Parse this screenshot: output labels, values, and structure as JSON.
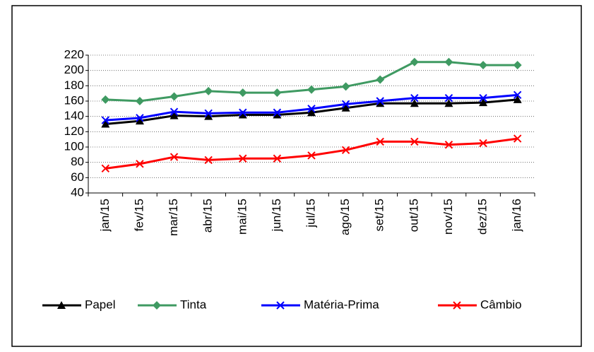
{
  "chart_data": {
    "type": "line",
    "categories": [
      "jan/15",
      "fev/15",
      "mar/15",
      "abr/15",
      "mai/15",
      "jun/15",
      "jul/15",
      "ago/15",
      "set/15",
      "out/15",
      "nov/15",
      "dez/15",
      "jan/16"
    ],
    "series": [
      {
        "name": "Papel",
        "color": "#000000",
        "marker": "triangle",
        "values": [
          130,
          134,
          141,
          140,
          142,
          142,
          145,
          151,
          157,
          157,
          157,
          158,
          162
        ]
      },
      {
        "name": "Tinta",
        "color": "#3f9a62",
        "marker": "diamond",
        "values": [
          162,
          160,
          166,
          173,
          171,
          171,
          175,
          179,
          188,
          211,
          211,
          207,
          207
        ]
      },
      {
        "name": "Matéria-Prima",
        "color": "#0000ff",
        "marker": "x",
        "values": [
          135,
          138,
          146,
          144,
          145,
          145,
          150,
          156,
          160,
          164,
          164,
          164,
          168
        ]
      },
      {
        "name": "Câmbio",
        "color": "#ff0000",
        "marker": "x",
        "values": [
          72,
          78,
          87,
          83,
          85,
          85,
          89,
          96,
          107,
          107,
          103,
          105,
          111
        ]
      }
    ],
    "ylim": [
      40,
      220
    ],
    "yticks": [
      40,
      60,
      80,
      100,
      120,
      140,
      160,
      180,
      200,
      220
    ],
    "grid": true,
    "legend": "bottom"
  }
}
